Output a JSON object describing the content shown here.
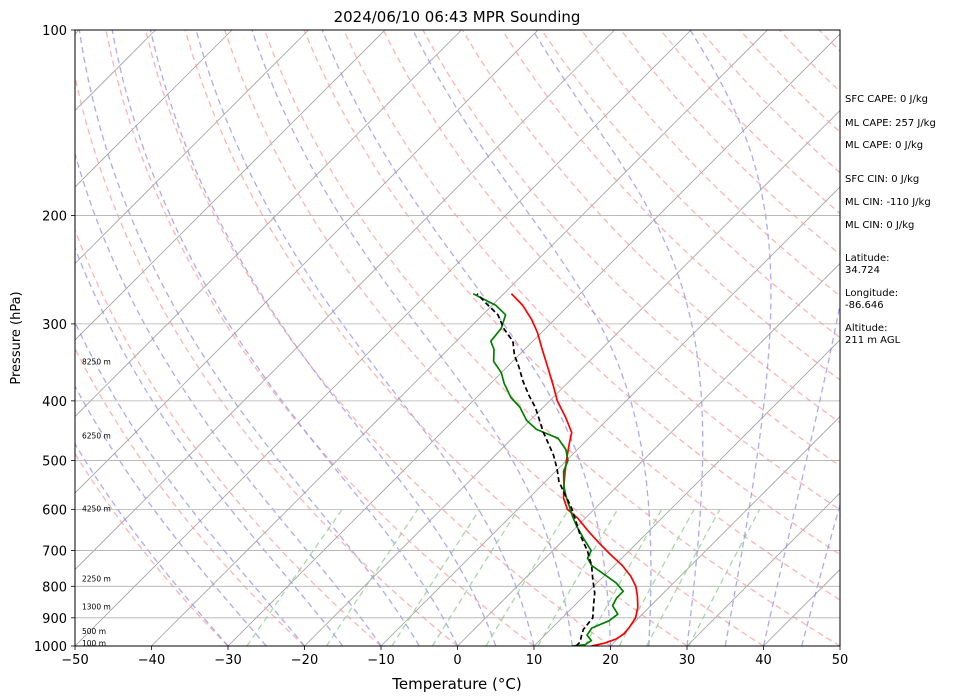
{
  "chart_data": {
    "type": "line",
    "title": "2024/06/10 06:43 MPR Sounding",
    "xlabel": "Temperature (°C)",
    "ylabel": "Pressure (hPa)",
    "xlim": [
      -50,
      50
    ],
    "ylim": [
      1000,
      100
    ],
    "y_scale": "log",
    "skew": "skew-T (isotherms slanted)",
    "grid": true,
    "x_ticks": [
      "−50",
      "−40",
      "−30",
      "−20",
      "−10",
      "0",
      "10",
      "20",
      "30",
      "40",
      "50"
    ],
    "y_ticks": [
      "100",
      "200",
      "300",
      "400",
      "500",
      "600",
      "700",
      "800",
      "900",
      "1000"
    ],
    "series": [
      {
        "color": "#ff0000",
        "points": [
          [
            17.5,
            1000
          ],
          [
            18.8,
            990
          ],
          [
            19.8,
            975
          ],
          [
            20.2,
            955
          ],
          [
            20.0,
            930
          ],
          [
            19.6,
            900
          ],
          [
            18.5,
            865
          ],
          [
            17.0,
            830
          ],
          [
            15.5,
            800
          ],
          [
            13.5,
            770
          ],
          [
            11.0,
            740
          ],
          [
            8.0,
            710
          ],
          [
            5.0,
            680
          ],
          [
            2.0,
            650
          ],
          [
            -1.0,
            620
          ],
          [
            -3.5,
            600
          ],
          [
            -5.5,
            575
          ],
          [
            -7.0,
            550
          ],
          [
            -8.5,
            525
          ],
          [
            -10.0,
            500
          ],
          [
            -11.8,
            470
          ],
          [
            -13.0,
            450
          ],
          [
            -15.8,
            425
          ],
          [
            -19.0,
            400
          ],
          [
            -21.5,
            378
          ],
          [
            -25.0,
            350
          ],
          [
            -27.7,
            330
          ],
          [
            -30.5,
            310
          ],
          [
            -33.0,
            295
          ],
          [
            -36.0,
            280
          ],
          [
            -39.0,
            268
          ]
        ]
      },
      {
        "color": "#008000",
        "points": [
          [
            15.0,
            1000
          ],
          [
            16.5,
            995
          ],
          [
            16.8,
            980
          ],
          [
            15.5,
            960
          ],
          [
            15.2,
            935
          ],
          [
            16.5,
            910
          ],
          [
            16.8,
            888
          ],
          [
            15.0,
            860
          ],
          [
            14.5,
            835
          ],
          [
            14.5,
            815
          ],
          [
            12.5,
            790
          ],
          [
            9.8,
            765
          ],
          [
            7.0,
            740
          ],
          [
            5.5,
            720
          ],
          [
            5.0,
            700
          ],
          [
            2.5,
            670
          ],
          [
            0.0,
            640
          ],
          [
            -2.0,
            615
          ],
          [
            -3.5,
            595
          ],
          [
            -5.5,
            570
          ],
          [
            -7.0,
            550
          ],
          [
            -9.0,
            520
          ],
          [
            -9.8,
            500
          ],
          [
            -11.5,
            480
          ],
          [
            -14.0,
            460
          ],
          [
            -18.0,
            445
          ],
          [
            -20.5,
            430
          ],
          [
            -23.0,
            410
          ],
          [
            -25.5,
            395
          ],
          [
            -27.5,
            380
          ],
          [
            -28.2,
            375
          ],
          [
            -30.0,
            360
          ],
          [
            -32.5,
            345
          ],
          [
            -34.0,
            330
          ],
          [
            -35.5,
            320
          ],
          [
            -35.8,
            305
          ],
          [
            -37.0,
            290
          ],
          [
            -39.5,
            280
          ],
          [
            -44.0,
            268
          ]
        ]
      },
      {
        "color": "#000000",
        "dashed": true,
        "points": [
          [
            15.5,
            1000
          ],
          [
            15.5,
            985
          ],
          [
            14.8,
            960
          ],
          [
            14.3,
            940
          ],
          [
            14.0,
            900
          ],
          [
            12.5,
            860
          ],
          [
            11.0,
            820
          ],
          [
            9.0,
            780
          ],
          [
            7.0,
            740
          ],
          [
            4.5,
            700
          ],
          [
            1.5,
            660
          ],
          [
            -1.0,
            625
          ],
          [
            -3.3,
            595
          ],
          [
            -6.0,
            565
          ],
          [
            -8.3,
            540
          ],
          [
            -10.2,
            515
          ],
          [
            -12.4,
            490
          ],
          [
            -14.5,
            470
          ],
          [
            -16.7,
            450
          ],
          [
            -18.8,
            430
          ],
          [
            -21.0,
            410
          ],
          [
            -23.4,
            392
          ],
          [
            -26.0,
            372
          ],
          [
            -28.5,
            352
          ],
          [
            -30.6,
            337
          ],
          [
            -32.6,
            320
          ],
          [
            -35.5,
            305
          ],
          [
            -38.0,
            290
          ],
          [
            -41.0,
            278
          ],
          [
            -43.5,
            268
          ]
        ]
      }
    ],
    "height_labels": [
      {
        "text": "8250 m",
        "p": 345
      },
      {
        "text": "6250 m",
        "p": 455
      },
      {
        "text": "4250 m",
        "p": 598
      },
      {
        "text": "2250 m",
        "p": 777
      },
      {
        "text": "1300 m",
        "p": 862
      },
      {
        "text": "500 m",
        "p": 946
      },
      {
        "text": "100 m",
        "p": 988
      }
    ],
    "annotations": {
      "sfc_cape": "SFC CAPE: 0 J/kg",
      "ml_cape_1": "ML CAPE: 257 J/kg",
      "ml_cape_2": "ML CAPE: 0 J/kg",
      "sfc_cin": "SFC CIN: 0 J/kg",
      "ml_cin_1": "ML CIN: -110 J/kg",
      "ml_cin_2": "ML CIN: 0 J/kg",
      "lat_label": "Latitude:",
      "lat_value": "34.724",
      "lon_label": "Longitude:",
      "lon_value": "-86.646",
      "alt_label": "Altitude:",
      "alt_value": "211 m AGL"
    },
    "reference_lines": {
      "dry_adiabats_color": "#ff9999",
      "moist_adiabats_color": "#8888ee",
      "mixing_ratio_color": "#88cc88",
      "isotherm_color": "#a0a0a0"
    }
  }
}
